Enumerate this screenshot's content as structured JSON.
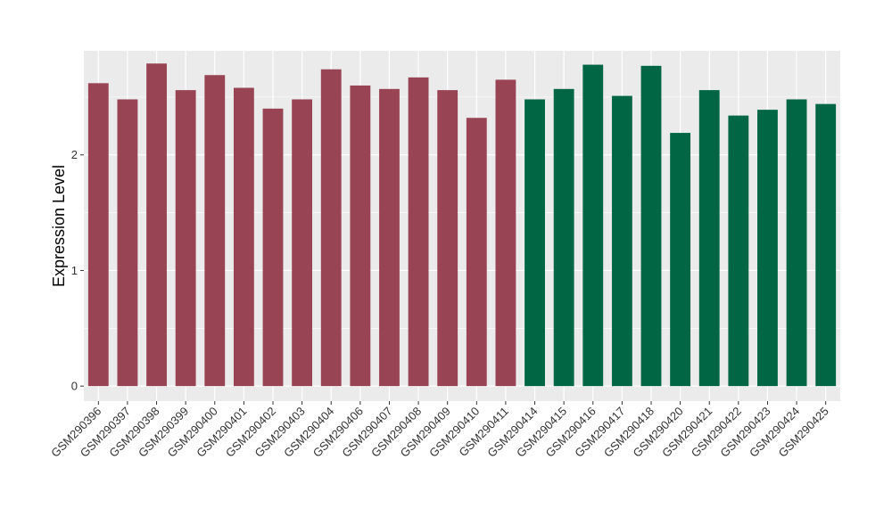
{
  "chart_data": {
    "type": "bar",
    "ylabel": "Expression Level",
    "xlabel": "",
    "ylim": [
      -0.13,
      2.9
    ],
    "yticks": [
      0,
      1,
      2
    ],
    "grid": true,
    "categories": [
      "GSM290396",
      "GSM290397",
      "GSM290398",
      "GSM290399",
      "GSM290400",
      "GSM290401",
      "GSM290402",
      "GSM290403",
      "GSM290404",
      "GSM290406",
      "GSM290407",
      "GSM290408",
      "GSM290409",
      "GSM290410",
      "GSM290411",
      "GSM290414",
      "GSM290415",
      "GSM290416",
      "GSM290417",
      "GSM290418",
      "GSM290420",
      "GSM290421",
      "GSM290422",
      "GSM290423",
      "GSM290424",
      "GSM290425"
    ],
    "values": [
      2.62,
      2.48,
      2.79,
      2.56,
      2.69,
      2.58,
      2.4,
      2.48,
      2.74,
      2.6,
      2.57,
      2.67,
      2.56,
      2.32,
      2.65,
      2.48,
      2.57,
      2.78,
      2.51,
      2.77,
      2.19,
      2.56,
      2.34,
      2.39,
      2.48,
      2.44
    ],
    "groups": [
      0,
      0,
      0,
      0,
      0,
      0,
      0,
      0,
      0,
      0,
      0,
      0,
      0,
      0,
      0,
      1,
      1,
      1,
      1,
      1,
      1,
      1,
      1,
      1,
      1,
      1
    ],
    "group_colors": [
      "#994455",
      "#006644"
    ],
    "panel_background": "#ebebeb"
  }
}
